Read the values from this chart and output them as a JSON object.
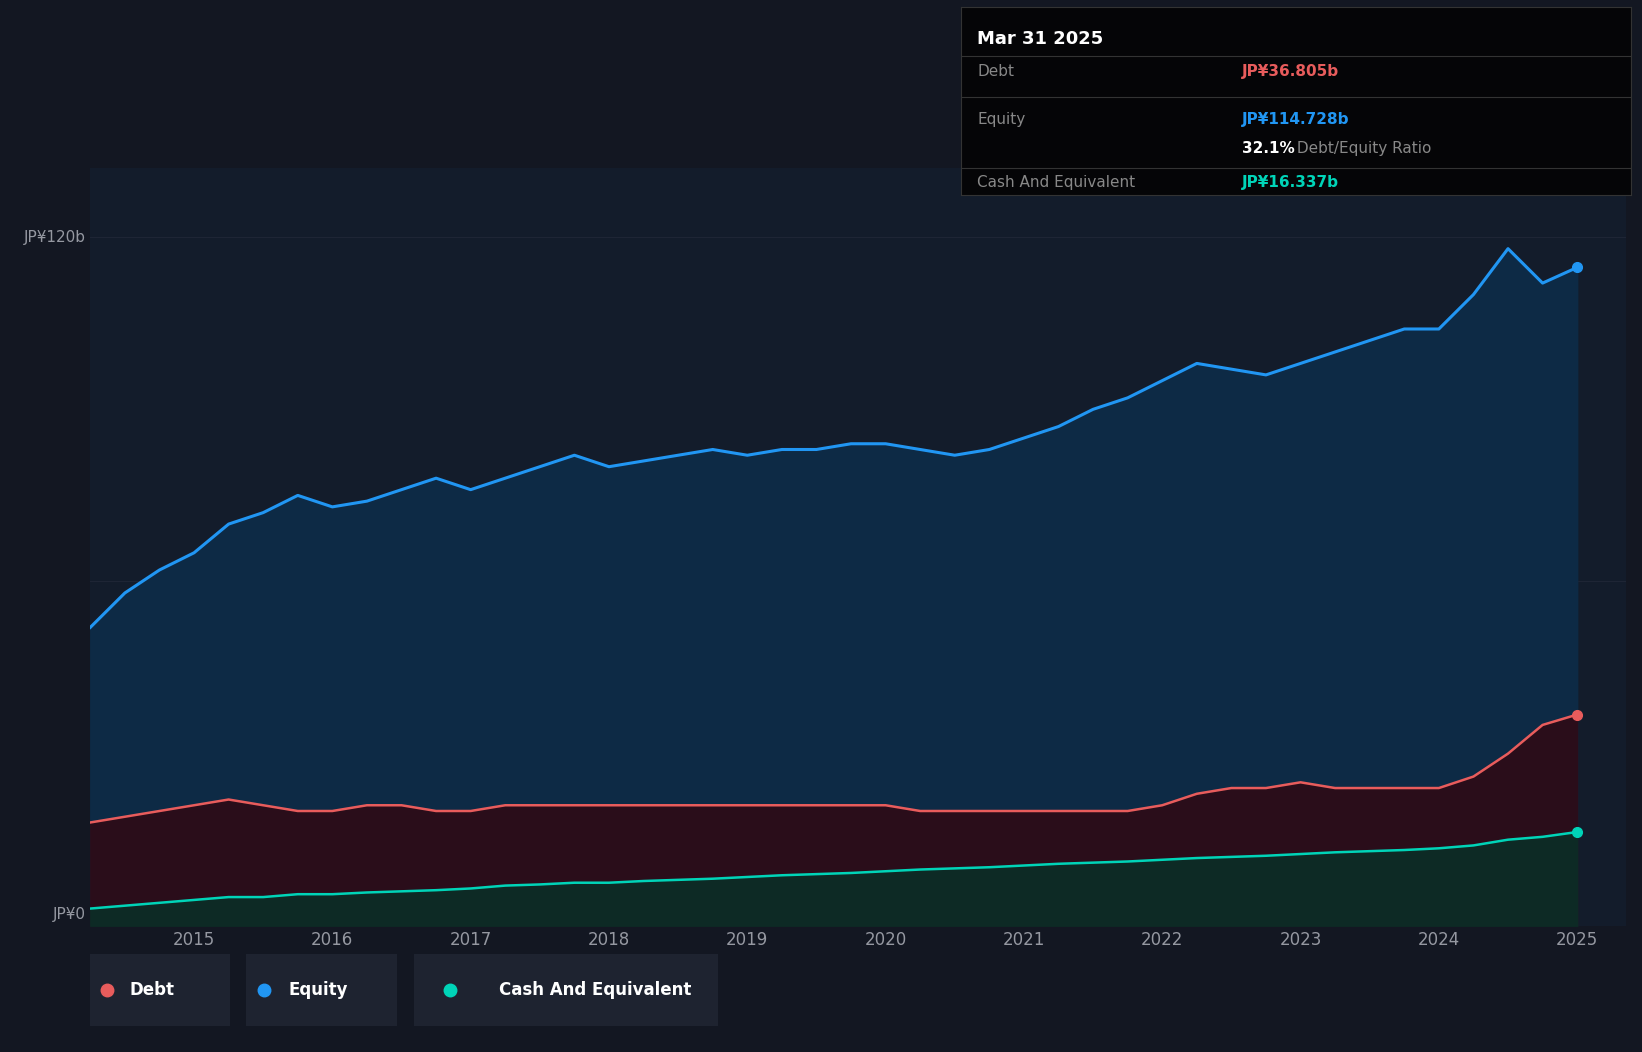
{
  "background_color": "#131722",
  "plot_bg_color": "#131c2b",
  "ylabel_120": "JP¥120b",
  "ylabel_0": "JP¥0",
  "x_ticks": [
    2015,
    2016,
    2017,
    2018,
    2019,
    2020,
    2021,
    2022,
    2023,
    2024,
    2025
  ],
  "equity_color": "#2196f3",
  "debt_color": "#e85c5c",
  "cash_color": "#00d4b8",
  "equity_fill_color": "#0d2a45",
  "debt_fill_color": "#2a0d1a",
  "cash_fill_color": "#0d2a25",
  "grid_color": "#1e2535",
  "legend_bg": "#1e2330",
  "tooltip_bg": "#050507",
  "tooltip_border": "#333333",
  "tooltip_title": "Mar 31 2025",
  "tooltip_debt_label": "Debt",
  "tooltip_debt_value": "JP¥36.805b",
  "tooltip_equity_label": "Equity",
  "tooltip_equity_value": "JP¥114.728b",
  "tooltip_ratio_bold": "32.1%",
  "tooltip_ratio_normal": " Debt/Equity Ratio",
  "tooltip_cash_label": "Cash And Equivalent",
  "tooltip_cash_value": "JP¥16.337b",
  "legend_debt": "Debt",
  "legend_equity": "Equity",
  "legend_cash": "Cash And Equivalent",
  "equity_data": {
    "years": [
      2014.25,
      2014.5,
      2014.75,
      2015.0,
      2015.25,
      2015.5,
      2015.75,
      2016.0,
      2016.25,
      2016.5,
      2016.75,
      2017.0,
      2017.25,
      2017.5,
      2017.75,
      2018.0,
      2018.25,
      2018.5,
      2018.75,
      2019.0,
      2019.25,
      2019.5,
      2019.75,
      2020.0,
      2020.25,
      2020.5,
      2020.75,
      2021.0,
      2021.25,
      2021.5,
      2021.75,
      2022.0,
      2022.25,
      2022.5,
      2022.75,
      2023.0,
      2023.25,
      2023.5,
      2023.75,
      2024.0,
      2024.25,
      2024.5,
      2024.75,
      2025.0
    ],
    "values": [
      52,
      58,
      62,
      65,
      70,
      72,
      75,
      73,
      74,
      76,
      78,
      76,
      78,
      80,
      82,
      80,
      81,
      82,
      83,
      82,
      83,
      83,
      84,
      84,
      83,
      82,
      83,
      85,
      87,
      90,
      92,
      95,
      98,
      97,
      96,
      98,
      100,
      102,
      104,
      104,
      110,
      118,
      112,
      114.728
    ]
  },
  "debt_data": {
    "years": [
      2014.25,
      2014.5,
      2014.75,
      2015.0,
      2015.25,
      2015.5,
      2015.75,
      2016.0,
      2016.25,
      2016.5,
      2016.75,
      2017.0,
      2017.25,
      2017.5,
      2017.75,
      2018.0,
      2018.25,
      2018.5,
      2018.75,
      2019.0,
      2019.25,
      2019.5,
      2019.75,
      2020.0,
      2020.25,
      2020.5,
      2020.75,
      2021.0,
      2021.25,
      2021.5,
      2021.75,
      2022.0,
      2022.25,
      2022.5,
      2022.75,
      2023.0,
      2023.25,
      2023.5,
      2023.75,
      2024.0,
      2024.25,
      2024.5,
      2024.75,
      2025.0
    ],
    "values": [
      18,
      19,
      20,
      21,
      22,
      21,
      20,
      20,
      21,
      21,
      20,
      20,
      21,
      21,
      21,
      21,
      21,
      21,
      21,
      21,
      21,
      21,
      21,
      21,
      20,
      20,
      20,
      20,
      20,
      20,
      20,
      21,
      23,
      24,
      24,
      25,
      24,
      24,
      24,
      24,
      26,
      30,
      35,
      36.805
    ]
  },
  "cash_data": {
    "years": [
      2014.25,
      2014.5,
      2014.75,
      2015.0,
      2015.25,
      2015.5,
      2015.75,
      2016.0,
      2016.25,
      2016.5,
      2016.75,
      2017.0,
      2017.25,
      2017.5,
      2017.75,
      2018.0,
      2018.25,
      2018.5,
      2018.75,
      2019.0,
      2019.25,
      2019.5,
      2019.75,
      2020.0,
      2020.25,
      2020.5,
      2020.75,
      2021.0,
      2021.25,
      2021.5,
      2021.75,
      2022.0,
      2022.25,
      2022.5,
      2022.75,
      2023.0,
      2023.25,
      2023.5,
      2023.75,
      2024.0,
      2024.25,
      2024.5,
      2024.75,
      2025.0
    ],
    "values": [
      3,
      3.5,
      4,
      4.5,
      5,
      5,
      5.5,
      5.5,
      5.8,
      6,
      6.2,
      6.5,
      7,
      7.2,
      7.5,
      7.5,
      7.8,
      8,
      8.2,
      8.5,
      8.8,
      9,
      9.2,
      9.5,
      9.8,
      10,
      10.2,
      10.5,
      10.8,
      11,
      11.2,
      11.5,
      11.8,
      12,
      12.2,
      12.5,
      12.8,
      13,
      13.2,
      13.5,
      14,
      15,
      15.5,
      16.337
    ]
  },
  "ylim": [
    0,
    132
  ],
  "xlim": [
    2014.25,
    2025.35
  ]
}
